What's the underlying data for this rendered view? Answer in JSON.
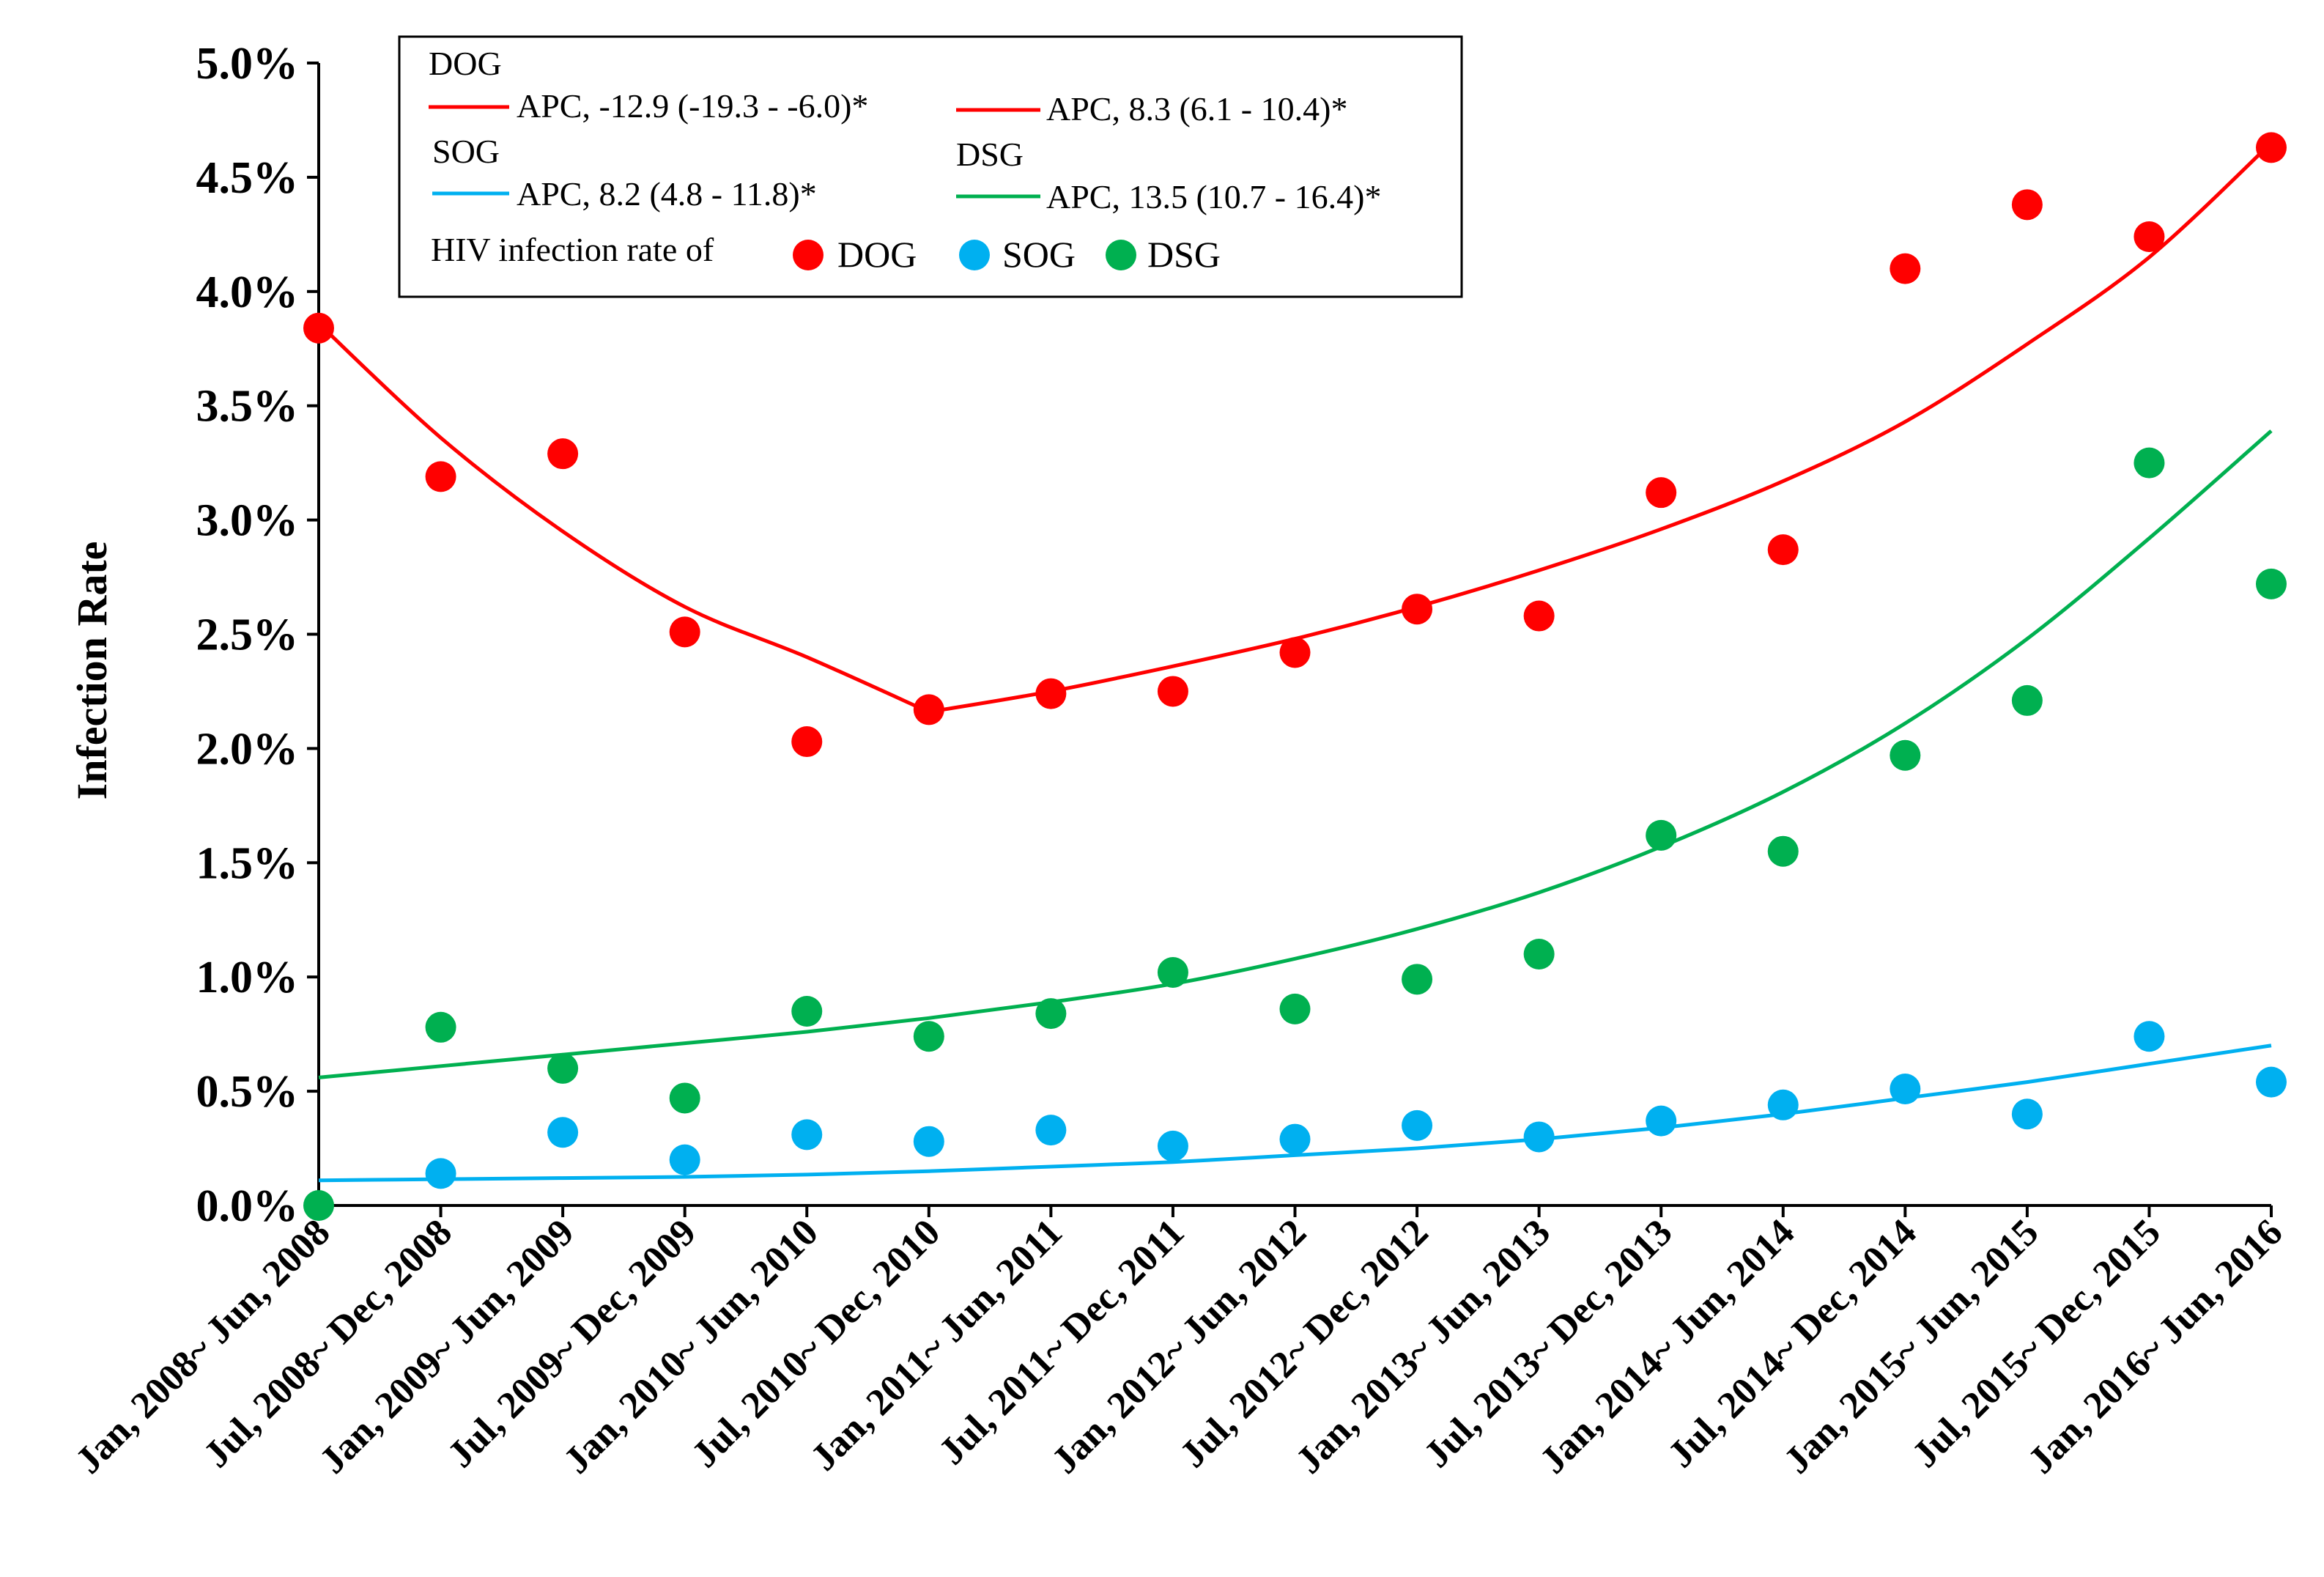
{
  "chart_data": {
    "type": "scatter",
    "title": "",
    "xlabel": "",
    "ylabel": "Infection Rate",
    "ylim": [
      0,
      5.0
    ],
    "y_ticks": [
      "0.0%",
      "0.5%",
      "1.0%",
      "1.5%",
      "2.0%",
      "2.5%",
      "3.0%",
      "3.5%",
      "4.0%",
      "4.5%",
      "5.0%"
    ],
    "categories": [
      "Jan, 2008~ Jun, 2008",
      "Jul, 2008~ Dec, 2008",
      "Jan, 2009~ Jun, 2009",
      "Jul, 2009~ Dec, 2009",
      "Jan, 2010~ Jun, 2010",
      "Jul, 2010~ Dec, 2010",
      "Jan, 2011~ Jun, 2011",
      "Jul, 2011~ Dec, 2011",
      "Jan, 2012~ Jun, 2012",
      "Jul, 2012~ Dec, 2012",
      "Jan, 2013~ Jun, 2013",
      "Jul, 2013~ Dec, 2013",
      "Jan, 2014~ Jun, 2014",
      "Jul, 2014~ Dec, 2014",
      "Jan, 2015~ Jun, 2015",
      "Jul, 2015~ Dec, 2015",
      "Jan, 2016~ Jun, 2016"
    ],
    "series": [
      {
        "name": "DOG",
        "color": "#ff0000",
        "values": [
          3.84,
          3.19,
          3.29,
          2.51,
          2.03,
          2.17,
          2.24,
          2.25,
          2.42,
          2.61,
          2.58,
          3.12,
          2.87,
          4.1,
          4.38,
          4.24,
          4.63
        ],
        "trend": [
          3.86,
          3.36,
          2.95,
          2.62,
          2.4,
          2.16,
          2.25,
          2.36,
          2.48,
          2.62,
          2.78,
          2.96,
          3.17,
          3.43,
          3.77,
          4.15,
          4.65
        ]
      },
      {
        "name": "SOG",
        "color": "#00b0f0",
        "values": [
          null,
          0.14,
          0.32,
          0.2,
          0.31,
          0.28,
          0.33,
          0.26,
          0.29,
          0.35,
          0.3,
          0.37,
          0.44,
          0.51,
          0.4,
          0.74,
          0.54
        ],
        "trend": [
          0.11,
          0.115,
          0.12,
          0.125,
          0.135,
          0.15,
          0.17,
          0.19,
          0.22,
          0.25,
          0.29,
          0.34,
          0.4,
          0.47,
          0.54,
          0.62,
          0.7
        ]
      },
      {
        "name": "DSG",
        "color": "#00b050",
        "values": [
          0.0,
          0.78,
          0.6,
          0.47,
          0.85,
          0.74,
          0.84,
          1.02,
          0.86,
          0.99,
          1.1,
          1.62,
          1.55,
          1.97,
          2.21,
          3.25,
          2.72
        ],
        "trend": [
          0.56,
          0.61,
          0.66,
          0.71,
          0.76,
          0.82,
          0.89,
          0.97,
          1.08,
          1.21,
          1.37,
          1.57,
          1.81,
          2.11,
          2.48,
          2.92,
          3.39
        ]
      }
    ],
    "legend": {
      "dog_header": "DOG",
      "dog_apc1": "APC, -12.9 (-19.3 - -6.0)*",
      "dog_apc2": "APC, 8.3 (6.1 - 10.4)*",
      "sog_header": "SOG",
      "sog_apc": "APC, 8.2 (4.8 - 11.8)*",
      "dsg_header": "DSG",
      "dsg_apc": "APC, 13.5 (10.7 - 16.4)*",
      "rate_label": "HIV infection rate of",
      "dot_dog": "DOG",
      "dot_sog": "SOG",
      "dot_dsg": "DSG"
    }
  }
}
